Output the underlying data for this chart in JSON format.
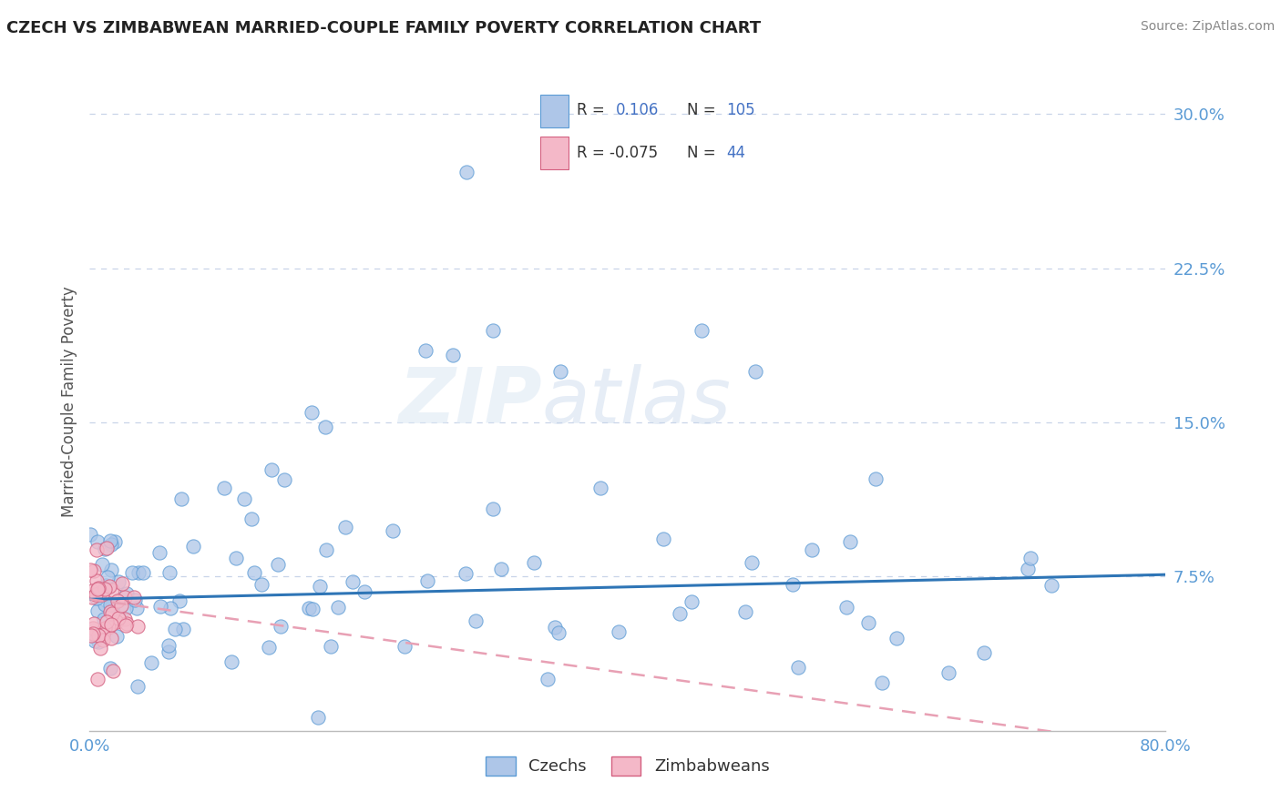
{
  "title": "CZECH VS ZIMBABWEAN MARRIED-COUPLE FAMILY POVERTY CORRELATION CHART",
  "source": "Source: ZipAtlas.com",
  "ylabel": "Married-Couple Family Poverty",
  "xlim": [
    0.0,
    0.8
  ],
  "ylim": [
    0.0,
    0.32
  ],
  "yticks": [
    0.075,
    0.15,
    0.225,
    0.3
  ],
  "yticklabels": [
    "7.5%",
    "15.0%",
    "22.5%",
    "30.0%"
  ],
  "xtick_left": 0.0,
  "xtick_right": 0.8,
  "xtick_left_label": "0.0%",
  "xtick_right_label": "80.0%",
  "czech_color": "#aec6e8",
  "czech_edge": "#5b9bd5",
  "zimbabwe_color": "#f4b8c8",
  "zimbabwe_edge": "#d46080",
  "trend_czech_color": "#2e75b6",
  "trend_zimbabwe_color": "#e8a0b4",
  "legend_czech_label": "Czechs",
  "legend_zimbabwe_label": "Zimbabweans",
  "R_czech": 0.106,
  "N_czech": 105,
  "R_zimbabwe": -0.075,
  "N_zimbabwe": 44,
  "watermark_zip": "ZIP",
  "watermark_atlas": "atlas",
  "background_color": "#ffffff",
  "grid_color": "#c8d4e8",
  "ytick_color": "#5b9bd5",
  "xtick_color": "#5b9bd5",
  "title_color": "#222222",
  "source_color": "#888888",
  "ylabel_color": "#555555",
  "trend_czech_start_y": 0.064,
  "trend_czech_end_y": 0.076,
  "trend_zimb_start_y": 0.064,
  "trend_zimb_end_y": -0.008,
  "dot_size": 120
}
